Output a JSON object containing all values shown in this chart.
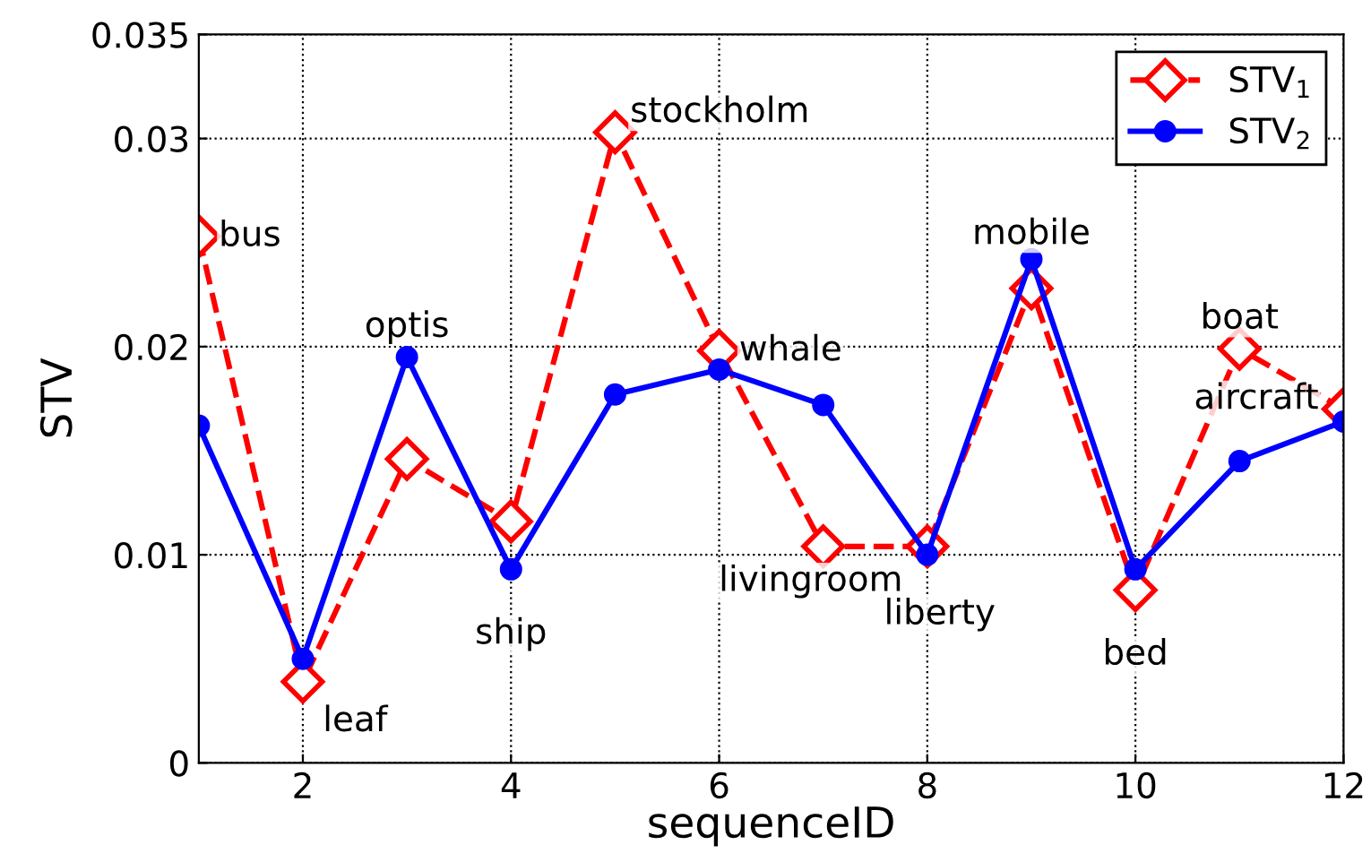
{
  "chart_data": {
    "type": "line",
    "xlabel": "sequenceID",
    "ylabel": "STV",
    "x": [
      1,
      2,
      3,
      4,
      5,
      6,
      7,
      8,
      9,
      10,
      11,
      12
    ],
    "series": [
      {
        "name": "STV$_{1}$",
        "color": "#ff0000",
        "marker": "diamond",
        "line_style": "dashed",
        "values": [
          0.0253,
          0.0039,
          0.0146,
          0.0116,
          0.0303,
          0.0198,
          0.0104,
          0.0104,
          0.0228,
          0.0083,
          0.0199,
          0.017
        ]
      },
      {
        "name": "STV$_{2}$",
        "color": "#0000ff",
        "marker": "circle",
        "line_style": "solid",
        "values": [
          0.0162,
          0.005,
          0.0195,
          0.0093,
          0.0177,
          0.0189,
          0.0172,
          0.01,
          0.0242,
          0.0093,
          0.0145,
          0.0164
        ]
      }
    ],
    "xlim": [
      1,
      12
    ],
    "xticks": [
      2,
      4,
      6,
      8,
      10,
      12
    ],
    "ylim": [
      0,
      0.035
    ],
    "yticks": [
      0,
      0.01,
      0.02,
      0.03,
      0.035
    ],
    "grid": true,
    "legend": "top right",
    "annotations": [
      {
        "text": "bus",
        "x": 1,
        "y": 0.0253
      },
      {
        "text": "leaf",
        "x": 2,
        "y": 0.0039
      },
      {
        "text": "optis",
        "x": 3,
        "y": 0.0195
      },
      {
        "text": "ship",
        "x": 4,
        "y": 0.0093
      },
      {
        "text": "stockholm",
        "x": 5,
        "y": 0.0303
      },
      {
        "text": "whale",
        "x": 6,
        "y": 0.0198
      },
      {
        "text": "livingroom",
        "x": 7,
        "y": 0.0104
      },
      {
        "text": "liberty",
        "x": 8,
        "y": 0.01
      },
      {
        "text": "mobile",
        "x": 9,
        "y": 0.0242
      },
      {
        "text": "bed",
        "x": 10,
        "y": 0.0083
      },
      {
        "text": "boat",
        "x": 11,
        "y": 0.0199
      },
      {
        "text": "aircraft",
        "x": 12,
        "y": 0.017
      }
    ]
  }
}
